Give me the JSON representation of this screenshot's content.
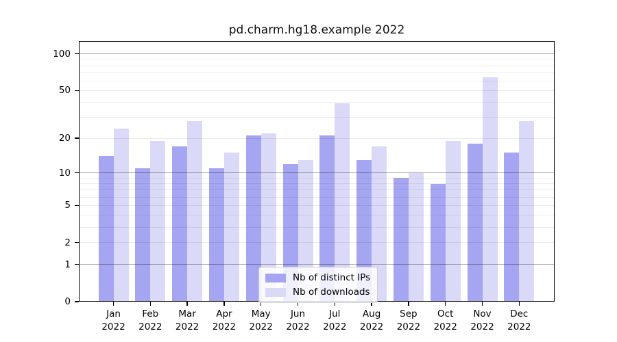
{
  "chart_data": {
    "type": "bar",
    "title": "pd.charm.hg18.example 2022",
    "categories": [
      "Jan 2022",
      "Feb 2022",
      "Mar 2022",
      "Apr 2022",
      "May 2022",
      "Jun 2022",
      "Jul 2022",
      "Aug 2022",
      "Sep 2022",
      "Oct 2022",
      "Nov 2022",
      "Dec 2022"
    ],
    "series": [
      {
        "name": "Nb of distinct IPs",
        "color": "#a5a5f1",
        "values": [
          14,
          11,
          17,
          11,
          21,
          12,
          21,
          13,
          9,
          8,
          18,
          15
        ]
      },
      {
        "name": "Nb of downloads",
        "color": "#dadaf8",
        "values": [
          24,
          19,
          28,
          15,
          22,
          13,
          39,
          17,
          10,
          19,
          64,
          28
        ]
      }
    ],
    "y_axis": {
      "scale": "log1p",
      "tick_values": [
        0,
        1,
        2,
        5,
        10,
        20,
        50,
        100
      ],
      "tick_labels": [
        "0",
        "1",
        "2",
        "5",
        "10",
        "20",
        "50",
        "100"
      ],
      "major_gridlines": [
        1,
        10,
        100
      ],
      "minor_gridlines": [
        2,
        3,
        4,
        5,
        6,
        7,
        8,
        9,
        20,
        30,
        40,
        50,
        60,
        70,
        80,
        90
      ],
      "top_value": 128
    },
    "legend": {
      "position": "lower center inside",
      "frame_color": "#cccccc"
    },
    "grid": "on"
  }
}
